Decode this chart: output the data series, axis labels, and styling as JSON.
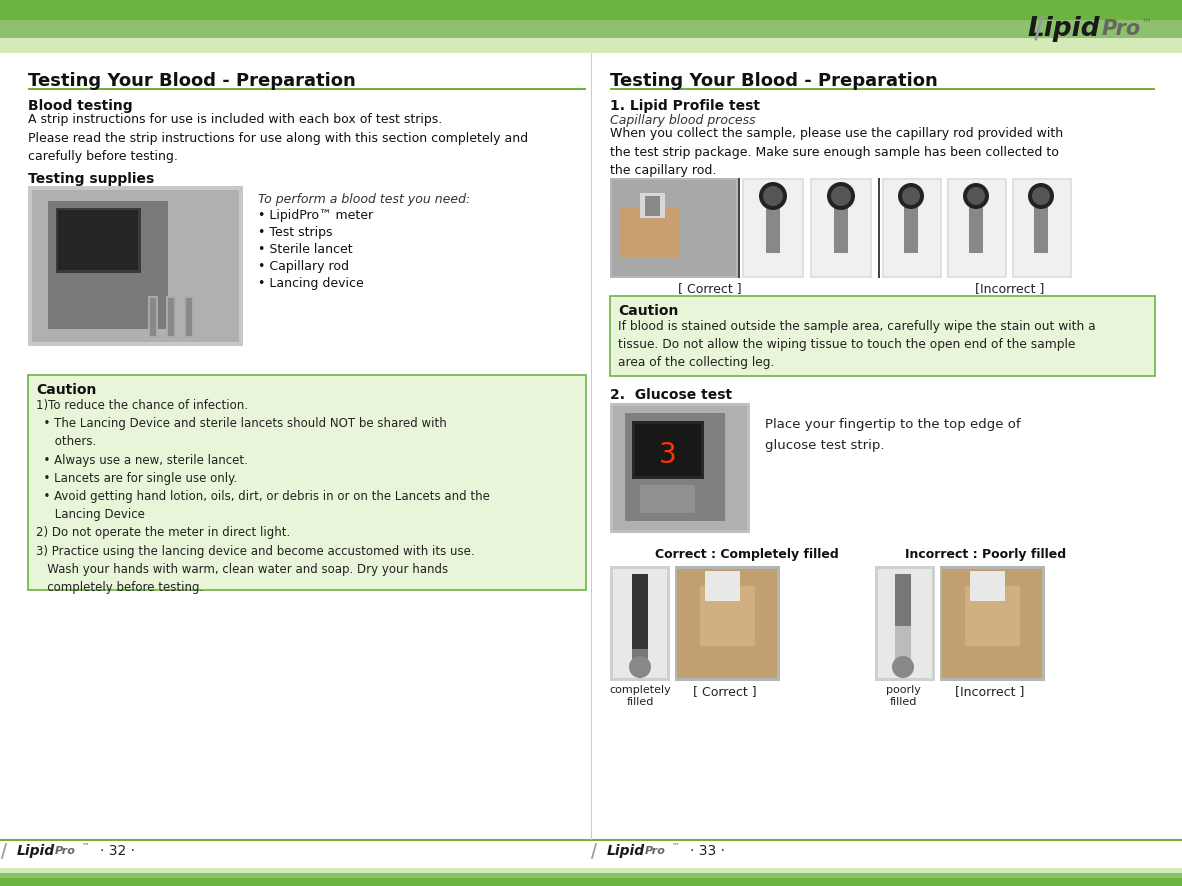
{
  "bg_color": "#ffffff",
  "header_bar1_color": "#6db33f",
  "header_bar2_color": "#8dc16e",
  "header_bar3_color": "#d4eab8",
  "divider_color": "#6db33f",
  "caution_bg_color": "#e8f5d8",
  "caution_border_color": "#6db33f",
  "left_title": "Testing Your Blood - Preparation",
  "right_title": "Testing Your Blood - Preparation",
  "left_section1_heading": "Blood testing",
  "left_section1_body": "A strip instructions for use is included with each box of test strips.\nPlease read the strip instructions for use along with this section completely and\ncarefully before testing.",
  "left_section2_heading": "Testing supplies",
  "left_supplies_italic": "To perform a blood test you need:",
  "left_supplies_list": [
    "• LipidPro™ meter",
    "• Test strips",
    "• Sterile lancet",
    "• Capillary rod",
    "• Lancing device"
  ],
  "left_caution_title": "Caution",
  "left_caution_body": "1)To reduce the chance of infection.\n  • The Lancing Device and sterile lancets should NOT be shared with\n     others.\n  • Always use a new, sterile lancet.\n  • Lancets are for single use only.\n  • Avoid getting hand lotion, oils, dirt, or debris in or on the Lancets and the\n     Lancing Device\n2) Do not operate the meter in direct light.\n3) Practice using the lancing device and become accustomed with its use.\n   Wash your hands with warm, clean water and soap. Dry your hands\n   completely before testing.",
  "right_section1_heading": "1. Lipid Profile test",
  "right_section1_italic": "Capillary blood process",
  "right_section1_body": "When you collect the sample, please use the capillary rod provided with\nthe test strip package. Make sure enough sample has been collected to\nthe capillary rod.",
  "right_correct_label": "[ Correct ]",
  "right_incorrect_label": "[Incorrect ]",
  "right_caution_title": "Caution",
  "right_caution_body": "If blood is stained outside the sample area, carefully wipe the stain out with a\ntissue. Do not allow the wiping tissue to touch the open end of the sample\narea of the collecting leg.",
  "right_section2_heading": "2.  Glucose test",
  "right_section2_body": "Place your fingertip to the top edge of\nglucose test strip.",
  "right_correct_label2": "Correct : Completely filled",
  "right_incorrect_label2": "Incorrect : Poorly filled",
  "right_completely_filled": "completely\nfilled",
  "right_poorly_filled": "poorly\nfilled",
  "right_correct_label3": "[ Correct ]",
  "right_incorrect_label3": "[Incorrect ]",
  "footer_page_left": "· 32 ·",
  "footer_page_right": "· 33 ·"
}
